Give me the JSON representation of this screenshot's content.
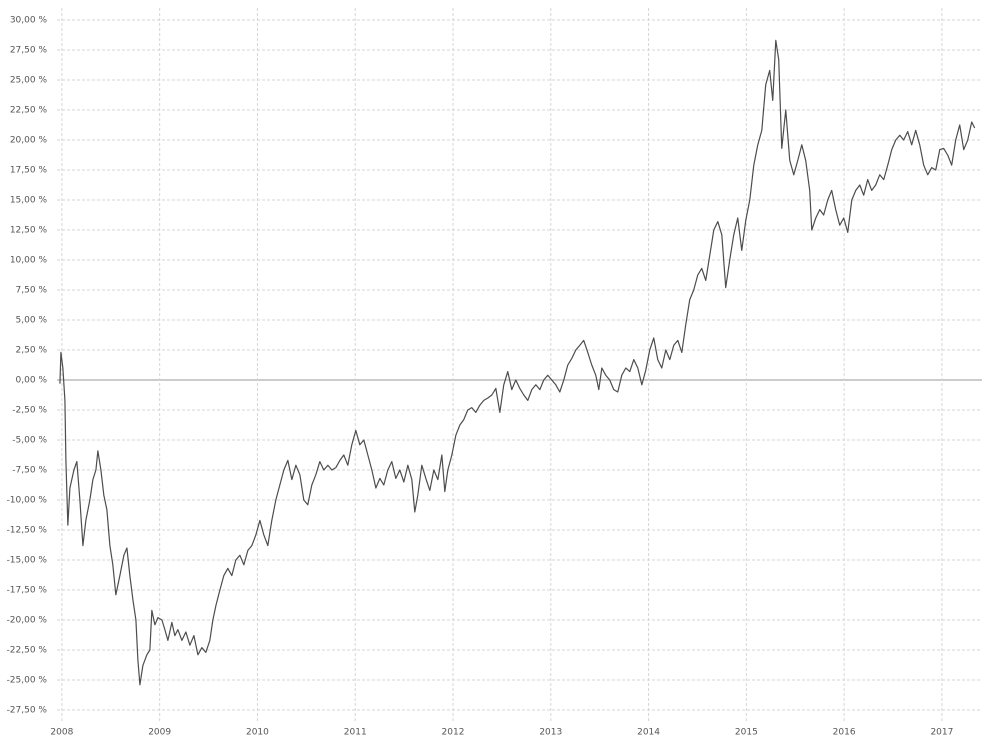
{
  "chart_data": {
    "type": "line",
    "color": "#4d4d4d",
    "grid": true,
    "xlim": [
      2007.95,
      2017.41
    ],
    "xticks": [
      2008,
      2009,
      2010,
      2011,
      2012,
      2013,
      2014,
      2015,
      2016,
      2017
    ],
    "ylim": [
      -28.5,
      31
    ],
    "yticks": [
      {
        "value": 30,
        "label": "30,00 %"
      },
      {
        "value": 27.5,
        "label": "27,50 %"
      },
      {
        "value": 25,
        "label": "25,00 %"
      },
      {
        "value": 22.5,
        "label": "22,50 %"
      },
      {
        "value": 20,
        "label": "20,00 %"
      },
      {
        "value": 17.5,
        "label": "17,50 %"
      },
      {
        "value": 15,
        "label": "15,00 %"
      },
      {
        "value": 12.5,
        "label": "12,50 %"
      },
      {
        "value": 10,
        "label": "10,00 %"
      },
      {
        "value": 7.5,
        "label": "7,50 %"
      },
      {
        "value": 5,
        "label": "5,00 %"
      },
      {
        "value": 2.5,
        "label": "2,50 %"
      },
      {
        "value": 0,
        "label": "0,00 %"
      },
      {
        "value": -2.5,
        "label": "-2,50 %"
      },
      {
        "value": -5,
        "label": "-5,00 %"
      },
      {
        "value": -7.5,
        "label": "-7,50 %"
      },
      {
        "value": -10,
        "label": "-10,00 %"
      },
      {
        "value": -12.5,
        "label": "-12,50 %"
      },
      {
        "value": -15,
        "label": "-15,00 %"
      },
      {
        "value": -17.5,
        "label": "-17,50 %"
      },
      {
        "value": -20,
        "label": "-20,00 %"
      },
      {
        "value": -22.5,
        "label": "-22,50 %"
      },
      {
        "value": -25,
        "label": "-25,00 %"
      },
      {
        "value": -27.5,
        "label": "-27,50 %"
      }
    ],
    "x": [
      2007.98,
      2007.99,
      2008.01,
      2008.031,
      2008.041,
      2008.061,
      2008.082,
      2008.123,
      2008.153,
      2008.184,
      2008.215,
      2008.245,
      2008.286,
      2008.317,
      2008.348,
      2008.368,
      2008.399,
      2008.429,
      2008.46,
      2008.491,
      2008.521,
      2008.552,
      2008.593,
      2008.634,
      2008.665,
      2008.695,
      2008.726,
      2008.757,
      2008.777,
      2008.798,
      2008.828,
      2008.869,
      2008.9,
      2008.92,
      2008.951,
      2008.982,
      2009.023,
      2009.053,
      2009.084,
      2009.125,
      2009.155,
      2009.186,
      2009.227,
      2009.268,
      2009.309,
      2009.35,
      2009.391,
      2009.432,
      2009.472,
      2009.513,
      2009.544,
      2009.575,
      2009.616,
      2009.656,
      2009.697,
      2009.738,
      2009.779,
      2009.82,
      2009.861,
      2009.902,
      2009.943,
      2009.984,
      2010.025,
      2010.065,
      2010.106,
      2010.147,
      2010.188,
      2010.229,
      2010.27,
      2010.311,
      2010.352,
      2010.393,
      2010.434,
      2010.474,
      2010.515,
      2010.556,
      2010.597,
      2010.638,
      2010.679,
      2010.72,
      2010.761,
      2010.802,
      2010.843,
      2010.883,
      2010.924,
      2010.965,
      2011.006,
      2011.047,
      2011.088,
      2011.129,
      2011.17,
      2011.211,
      2011.252,
      2011.292,
      2011.333,
      2011.374,
      2011.415,
      2011.456,
      2011.497,
      2011.538,
      2011.579,
      2011.609,
      2011.64,
      2011.681,
      2011.722,
      2011.763,
      2011.804,
      2011.845,
      2011.886,
      2011.916,
      2011.947,
      2011.988,
      2012.029,
      2012.07,
      2012.11,
      2012.151,
      2012.192,
      2012.233,
      2012.274,
      2012.315,
      2012.356,
      2012.397,
      2012.438,
      2012.479,
      2012.519,
      2012.56,
      2012.601,
      2012.642,
      2012.683,
      2012.724,
      2012.765,
      2012.806,
      2012.847,
      2012.888,
      2012.928,
      2012.969,
      2013.01,
      2013.051,
      2013.092,
      2013.133,
      2013.174,
      2013.215,
      2013.256,
      2013.297,
      2013.337,
      2013.378,
      2013.419,
      2013.46,
      2013.491,
      2013.522,
      2013.562,
      2013.603,
      2013.644,
      2013.685,
      2013.726,
      2013.767,
      2013.808,
      2013.849,
      2013.89,
      2013.931,
      2013.971,
      2014.012,
      2014.053,
      2014.094,
      2014.135,
      2014.176,
      2014.217,
      2014.258,
      2014.299,
      2014.34,
      2014.38,
      2014.421,
      2014.462,
      2014.503,
      2014.544,
      2014.585,
      2014.626,
      2014.667,
      2014.708,
      2014.749,
      2014.789,
      2014.83,
      2014.871,
      2014.912,
      2014.953,
      2014.994,
      2015.035,
      2015.076,
      2015.117,
      2015.158,
      2015.198,
      2015.239,
      2015.27,
      2015.301,
      2015.331,
      2015.362,
      2015.403,
      2015.444,
      2015.485,
      2015.526,
      2015.567,
      2015.607,
      2015.648,
      2015.669,
      2015.71,
      2015.751,
      2015.791,
      2015.832,
      2015.873,
      2015.914,
      2015.955,
      2015.996,
      2016.037,
      2016.078,
      2016.119,
      2016.16,
      2016.2,
      2016.241,
      2016.282,
      2016.323,
      2016.364,
      2016.405,
      2016.446,
      2016.487,
      2016.528,
      2016.569,
      2016.609,
      2016.65,
      2016.691,
      2016.732,
      2016.773,
      2016.814,
      2016.855,
      2016.896,
      2016.937,
      2016.978,
      2017.018,
      2017.059,
      2017.1,
      2017.141,
      2017.182,
      2017.223,
      2017.264,
      2017.305,
      2017.335
    ],
    "values": [
      -0.3,
      2.3,
      1.0,
      -1.7,
      -6.7,
      -12.1,
      -9,
      -7.5,
      -6.8,
      -10,
      -13.8,
      -11.7,
      -10,
      -8.3,
      -7.5,
      -5.9,
      -7.5,
      -9.6,
      -10.8,
      -13.8,
      -15.4,
      -17.9,
      -16.3,
      -14.6,
      -14,
      -16.3,
      -18.3,
      -20,
      -23.3,
      -25.4,
      -23.8,
      -22.9,
      -22.5,
      -19.2,
      -20.4,
      -19.8,
      -20,
      -20.8,
      -21.7,
      -20.2,
      -21.3,
      -20.8,
      -21.7,
      -21,
      -22.1,
      -21.3,
      -22.9,
      -22.3,
      -22.7,
      -21.7,
      -20,
      -18.8,
      -17.5,
      -16.3,
      -15.7,
      -16.3,
      -15,
      -14.6,
      -15.4,
      -14.2,
      -13.8,
      -12.9,
      -11.7,
      -12.9,
      -13.8,
      -11.7,
      -10,
      -8.75,
      -7.5,
      -6.7,
      -8.3,
      -7.1,
      -7.9,
      -10,
      -10.4,
      -8.75,
      -7.9,
      -6.8,
      -7.5,
      -7.1,
      -7.5,
      -7.3,
      -6.7,
      -6.25,
      -7.1,
      -5.4,
      -4.2,
      -5.4,
      -5,
      -6.25,
      -7.5,
      -9,
      -8.2,
      -8.75,
      -7.5,
      -6.8,
      -8.2,
      -7.5,
      -8.5,
      -7.1,
      -8.3,
      -11,
      -9.6,
      -7.1,
      -8.2,
      -9.2,
      -7.5,
      -8.3,
      -6.25,
      -9.3,
      -7.5,
      -6.25,
      -4.6,
      -3.75,
      -3.3,
      -2.5,
      -2.3,
      -2.7,
      -2.1,
      -1.7,
      -1.5,
      -1.25,
      -0.7,
      -2.7,
      -0.4,
      0.7,
      -0.8,
      0,
      -0.7,
      -1.25,
      -1.7,
      -0.8,
      -0.4,
      -0.8,
      0,
      0.4,
      0,
      -0.4,
      -1,
      0,
      1.25,
      1.8,
      2.5,
      2.9,
      3.3,
      2.3,
      1.25,
      0.4,
      -0.8,
      1,
      0.4,
      0,
      -0.8,
      -1,
      0.4,
      1,
      0.7,
      1.7,
      1,
      -0.4,
      0.8,
      2.5,
      3.5,
      1.7,
      1,
      2.5,
      1.7,
      2.9,
      3.3,
      2.3,
      4.6,
      6.7,
      7.5,
      8.75,
      9.3,
      8.3,
      10.4,
      12.5,
      13.2,
      12.1,
      7.7,
      10,
      12.1,
      13.5,
      10.8,
      13.3,
      15,
      17.9,
      19.6,
      20.8,
      24.6,
      25.8,
      23.3,
      28.3,
      26.7,
      19.3,
      22.5,
      18.3,
      17.1,
      18.3,
      19.6,
      18.3,
      15.8,
      12.5,
      13.5,
      14.2,
      13.75,
      15,
      15.8,
      14.2,
      12.9,
      13.5,
      12.3,
      15,
      15.8,
      16.25,
      15.4,
      16.7,
      15.8,
      16.25,
      17.1,
      16.7,
      17.9,
      19.2,
      20,
      20.4,
      20,
      20.7,
      19.6,
      20.8,
      19.6,
      17.9,
      17.1,
      17.7,
      17.5,
      19.2,
      19.3,
      18.75,
      17.9,
      20,
      21.25,
      19.2,
      20,
      21.5,
      21
    ]
  }
}
